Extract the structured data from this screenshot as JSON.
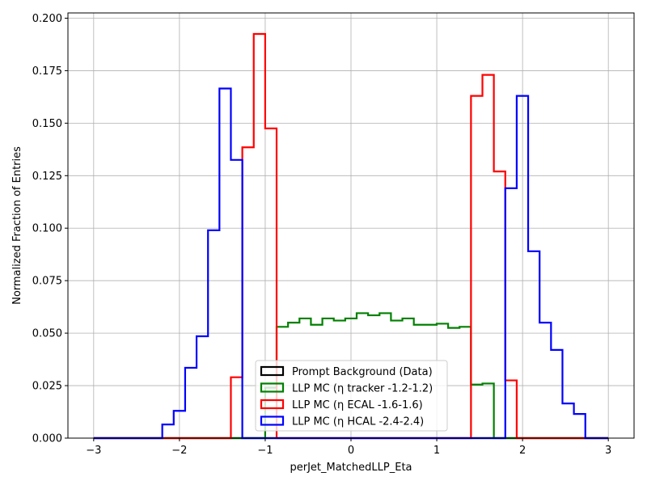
{
  "chart_data": {
    "type": "histogram-step",
    "xlabel": "perJet_MatchedLLP_Eta",
    "ylabel": "Normalized Fraction of Entries",
    "xlim": [
      -3.3,
      3.3
    ],
    "ylim": [
      0.0,
      0.2025
    ],
    "xticks": [
      -3,
      -2,
      -1,
      0,
      1,
      2,
      3
    ],
    "xtick_labels": [
      "−3",
      "−2",
      "−1",
      "0",
      "1",
      "2",
      "3"
    ],
    "yticks": [
      0.0,
      0.025,
      0.05,
      0.075,
      0.1,
      0.125,
      0.15,
      0.175,
      0.2
    ],
    "ytick_labels": [
      "0.000",
      "0.025",
      "0.050",
      "0.075",
      "0.100",
      "0.125",
      "0.150",
      "0.175",
      "0.200"
    ],
    "grid": true,
    "legend_position": "lower-center",
    "bins": {
      "start": -3.0,
      "width": 0.1333,
      "count": 45
    },
    "series": [
      {
        "name": "Prompt Background (Data)",
        "color": "#000000",
        "values": [
          0,
          0,
          0,
          0,
          0,
          0,
          0,
          0,
          0,
          0,
          0,
          0,
          0,
          0,
          0,
          0,
          0,
          0,
          0,
          0,
          0,
          0,
          0,
          0,
          0,
          0,
          0,
          0,
          0,
          0,
          0,
          0,
          0,
          0,
          0,
          0,
          0,
          0,
          0,
          0,
          0,
          0,
          0,
          0,
          0
        ]
      },
      {
        "name": "LLP MC (η tracker -1.2-1.2)",
        "color": "#008000",
        "values": [
          0,
          0,
          0,
          0,
          0,
          0,
          0,
          0,
          0,
          0,
          0,
          0,
          0,
          0,
          0,
          0.024,
          0.053,
          0.055,
          0.057,
          0.054,
          0.057,
          0.056,
          0.057,
          0.0595,
          0.0585,
          0.0595,
          0.056,
          0.057,
          0.054,
          0.054,
          0.0545,
          0.0525,
          0.053,
          0.0255,
          0.026,
          0,
          0,
          0,
          0,
          0,
          0,
          0,
          0,
          0,
          0
        ]
      },
      {
        "name": "LLP MC (η ECAL -1.6-1.6)",
        "color": "#ff0000",
        "values": [
          0,
          0,
          0,
          0,
          0,
          0,
          0,
          0,
          0,
          0,
          0,
          0,
          0.029,
          0.1385,
          0.1925,
          0.1475,
          0,
          0,
          0,
          0,
          0,
          0,
          0,
          0,
          0,
          0,
          0,
          0,
          0,
          0,
          0,
          0,
          0,
          0.163,
          0.173,
          0.127,
          0.0275,
          0,
          0,
          0,
          0,
          0,
          0,
          0,
          0
        ]
      },
      {
        "name": "LLP MC (η HCAL -2.4-2.4)",
        "color": "#0000ff",
        "values": [
          0,
          0,
          0,
          0,
          0,
          0,
          0.0065,
          0.013,
          0.0335,
          0.0485,
          0.099,
          0.1665,
          0.1325,
          0,
          0,
          0,
          0,
          0,
          0,
          0,
          0,
          0,
          0,
          0,
          0,
          0,
          0,
          0,
          0,
          0,
          0,
          0,
          0,
          0,
          0,
          0,
          0.119,
          0.163,
          0.089,
          0.055,
          0.042,
          0.0165,
          0.0115,
          0,
          0
        ]
      }
    ]
  }
}
